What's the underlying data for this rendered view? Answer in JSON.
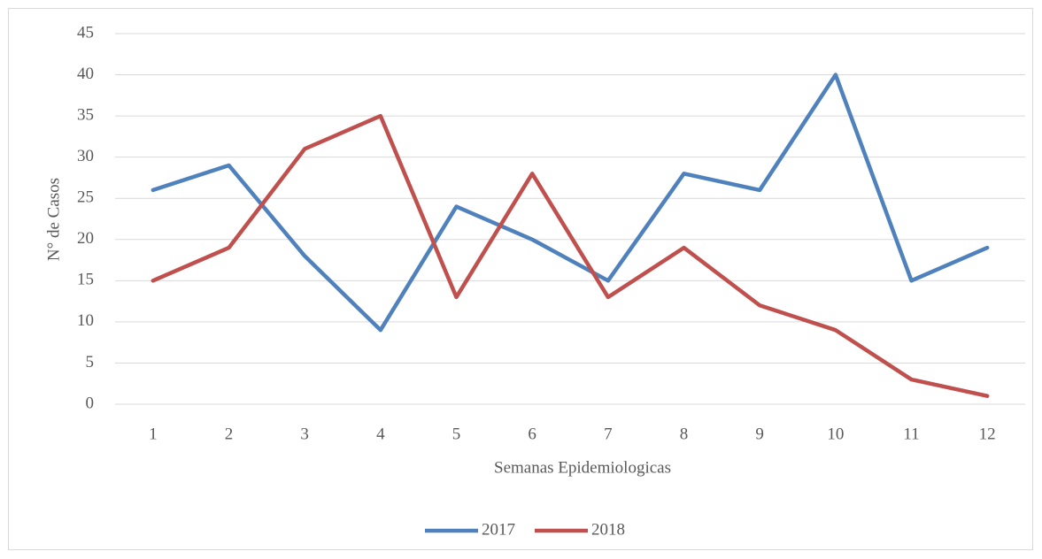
{
  "chart_data": {
    "type": "line",
    "xlabel": "Semanas Epidemiologicas",
    "ylabel": "N° de Casos",
    "categories": [
      "1",
      "2",
      "3",
      "4",
      "5",
      "6",
      "7",
      "8",
      "9",
      "10",
      "11",
      "12"
    ],
    "series": [
      {
        "name": "2017",
        "color": "#4f81bd",
        "values": [
          26,
          29,
          18,
          9,
          24,
          20,
          15,
          28,
          26,
          40,
          15,
          19
        ]
      },
      {
        "name": "2018",
        "color": "#c0504d",
        "values": [
          15,
          19,
          31,
          35,
          13,
          28,
          13,
          19,
          12,
          9,
          3,
          1
        ]
      }
    ],
    "ylim": [
      0,
      45
    ],
    "yticks": [
      0,
      5,
      10,
      15,
      20,
      25,
      30,
      35,
      40,
      45
    ],
    "grid": true,
    "legend": "bottom"
  }
}
